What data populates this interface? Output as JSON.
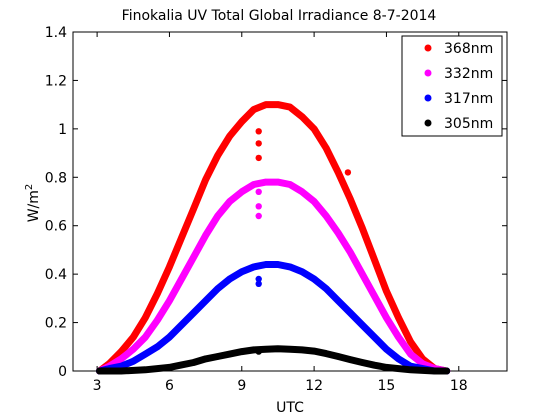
{
  "chart_data": {
    "type": "scatter",
    "title": "Finokalia UV Total Global Irradiance 8-7-2014",
    "xlabel": "UTC",
    "ylabel_base": "W/m",
    "ylabel_exp": "2",
    "xlim": [
      2,
      20
    ],
    "ylim": [
      0,
      1.4
    ],
    "xticks": [
      3,
      6,
      9,
      12,
      15,
      18
    ],
    "yticks": [
      0,
      0.2,
      0.4,
      0.6,
      0.8,
      1,
      1.2,
      1.4
    ],
    "xtick_labels": [
      "3",
      "6",
      "9",
      "12",
      "15",
      "18"
    ],
    "ytick_labels": [
      "0",
      "0.2",
      "0.4",
      "0.6",
      "0.8",
      "1",
      "1.2",
      "1.4"
    ],
    "grid": false,
    "legend_position": "top-right",
    "series": [
      {
        "name": "368nm",
        "color": "#ff0000",
        "x": [
          3.1,
          3.5,
          4,
          4.5,
          5,
          5.5,
          6,
          6.5,
          7,
          7.5,
          8,
          8.5,
          9,
          9.5,
          10,
          10.5,
          11,
          11.5,
          12,
          12.5,
          13,
          13.5,
          14,
          14.5,
          15,
          15.5,
          16,
          16.5,
          17,
          17.5,
          9.7,
          9.7,
          9.7,
          13.4
        ],
        "y": [
          0.0,
          0.03,
          0.08,
          0.14,
          0.22,
          0.32,
          0.43,
          0.55,
          0.67,
          0.79,
          0.89,
          0.97,
          1.03,
          1.08,
          1.1,
          1.1,
          1.09,
          1.05,
          1.0,
          0.92,
          0.82,
          0.71,
          0.59,
          0.46,
          0.33,
          0.22,
          0.12,
          0.05,
          0.01,
          0.0,
          0.99,
          0.94,
          0.88,
          0.82
        ]
      },
      {
        "name": "332nm",
        "color": "#ff00ff",
        "x": [
          3.1,
          3.5,
          4,
          4.5,
          5,
          5.5,
          6,
          6.5,
          7,
          7.5,
          8,
          8.5,
          9,
          9.5,
          10,
          10.5,
          11,
          11.5,
          12,
          12.5,
          13,
          13.5,
          14,
          14.5,
          15,
          15.5,
          16,
          16.5,
          17,
          17.5,
          9.7,
          9.7,
          9.7
        ],
        "y": [
          0.0,
          0.02,
          0.05,
          0.09,
          0.14,
          0.21,
          0.29,
          0.38,
          0.47,
          0.56,
          0.64,
          0.7,
          0.74,
          0.77,
          0.78,
          0.78,
          0.77,
          0.74,
          0.7,
          0.64,
          0.57,
          0.49,
          0.4,
          0.31,
          0.22,
          0.14,
          0.07,
          0.03,
          0.01,
          0.0,
          0.74,
          0.68,
          0.64
        ]
      },
      {
        "name": "317nm",
        "color": "#0000ff",
        "x": [
          3.1,
          3.5,
          4,
          4.5,
          5,
          5.5,
          6,
          6.5,
          7,
          7.5,
          8,
          8.5,
          9,
          9.5,
          10,
          10.5,
          11,
          11.5,
          12,
          12.5,
          13,
          13.5,
          14,
          14.5,
          15,
          15.5,
          16,
          16.5,
          17,
          17.5,
          9.7,
          9.7
        ],
        "y": [
          0.0,
          0.01,
          0.02,
          0.04,
          0.07,
          0.1,
          0.14,
          0.19,
          0.24,
          0.29,
          0.34,
          0.38,
          0.41,
          0.43,
          0.44,
          0.44,
          0.43,
          0.41,
          0.38,
          0.34,
          0.29,
          0.24,
          0.19,
          0.14,
          0.09,
          0.05,
          0.02,
          0.01,
          0.0,
          0.0,
          0.38,
          0.36
        ]
      },
      {
        "name": "305nm",
        "color": "#000000",
        "x": [
          3.1,
          4,
          5,
          6,
          6.5,
          7,
          7.5,
          8,
          8.5,
          9,
          9.5,
          10,
          10.5,
          11,
          11.5,
          12,
          12.5,
          13,
          13.5,
          14,
          14.5,
          15,
          16,
          17,
          17.5,
          9.7
        ],
        "y": [
          0.0,
          0.0,
          0.005,
          0.015,
          0.025,
          0.035,
          0.05,
          0.06,
          0.07,
          0.08,
          0.087,
          0.09,
          0.092,
          0.09,
          0.087,
          0.082,
          0.072,
          0.06,
          0.047,
          0.035,
          0.024,
          0.015,
          0.005,
          0.0,
          0.0,
          0.08
        ]
      }
    ]
  }
}
